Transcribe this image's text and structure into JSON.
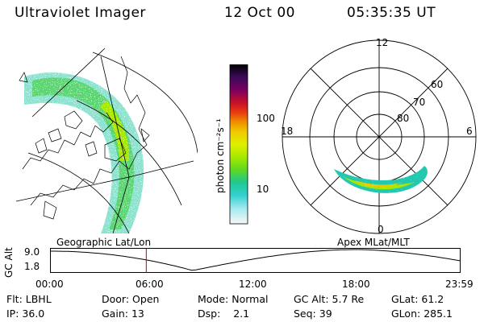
{
  "header": {
    "instrument": "Ultraviolet Imager",
    "date": "12 Oct 00",
    "time": "05:35:35 UT"
  },
  "colorbar": {
    "unit": "photon cm⁻²s⁻¹",
    "ticks": [
      "100",
      "10"
    ],
    "colors": [
      "#000000",
      "#2a0a4a",
      "#5a0070",
      "#7a0060",
      "#a00050",
      "#c8102a",
      "#e03010",
      "#f06000",
      "#f08c00",
      "#f0b400",
      "#f0dc00",
      "#d8ee00",
      "#a8e800",
      "#78dc00",
      "#40d040",
      "#20c890",
      "#20c8c8",
      "#60d8e0",
      "#a0e8f0",
      "#d8f4f8",
      "#f8f8f8"
    ]
  },
  "geo_panel": {
    "label": "Geographic Lat/Lon"
  },
  "polar_panel": {
    "label": "Apex MLat/MLT",
    "mlt_labels": {
      "top": "12",
      "left": "18",
      "right": "6",
      "bottom": "0"
    },
    "lat_labels": [
      "60",
      "70",
      "80"
    ]
  },
  "timeline": {
    "axis_label": "GC Alt",
    "y_ticks": [
      "9.0",
      "1.8"
    ],
    "x_ticks": [
      "00:00",
      "06:00",
      "12:00",
      "18:00",
      "23:59"
    ],
    "marker_color": "#c00000",
    "marker_time_hours": 5.59
  },
  "info": {
    "filter_label": "Flt:",
    "filter": "LBHL",
    "ip_label": "IP:",
    "ip": "36.0",
    "door_label": "Door:",
    "door": "Open",
    "gain_label": "Gain:",
    "gain": "13",
    "mode_label": "Mode:",
    "mode": "Normal",
    "dsp_label": "Dsp:",
    "dsp": "2.1",
    "gcalt_label": "GC Alt:",
    "gcalt": "5.7 Re",
    "seq_label": "Seq:",
    "seq": "39",
    "glat_label": "GLat:",
    "glat": "61.2",
    "glon_label": "GLon:",
    "glon": "285.1"
  }
}
